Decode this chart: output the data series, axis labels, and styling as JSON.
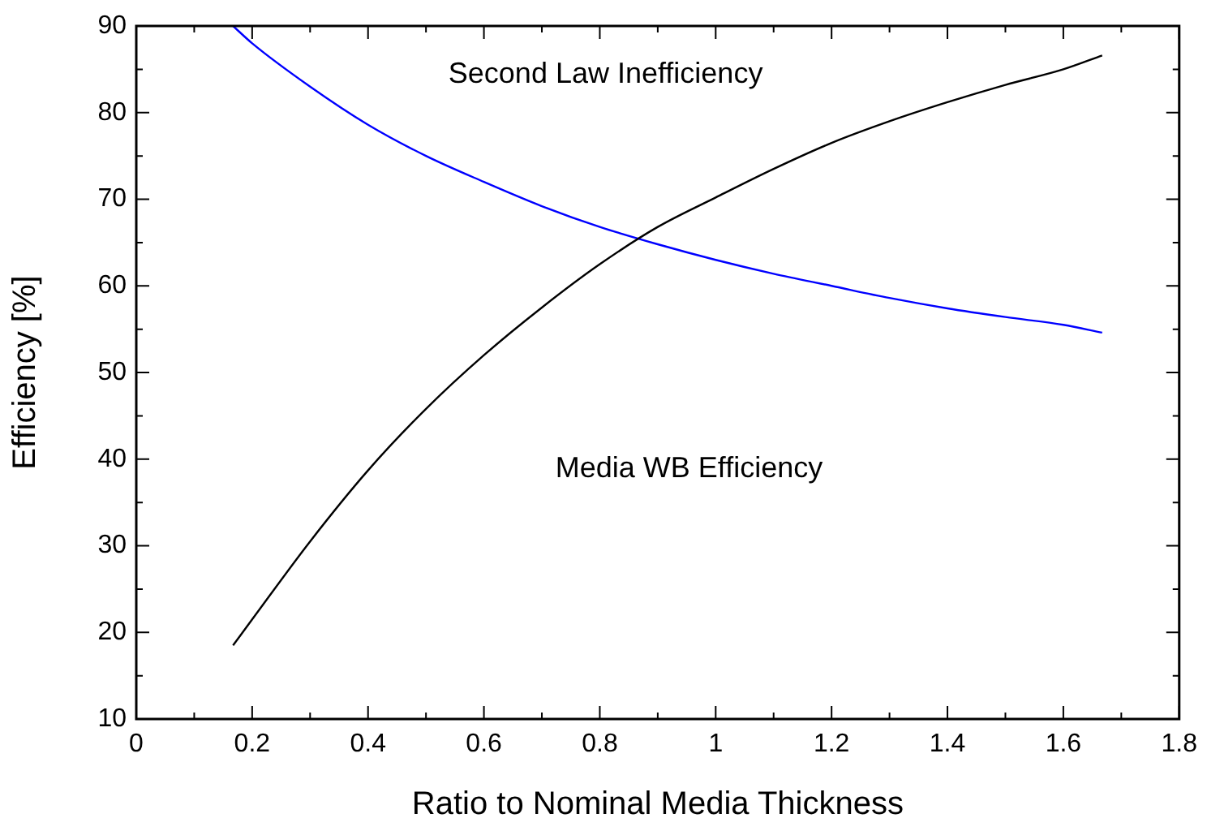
{
  "chart_data": {
    "type": "line",
    "xlabel": "Ratio to Nominal Media Thickness",
    "ylabel": "Efficiency [%]",
    "xlim": [
      0,
      1.8
    ],
    "ylim": [
      10,
      90
    ],
    "xticks": [
      0,
      {
        "value": 0.1,
        "label": null
      },
      0.2,
      {
        "value": 0.3,
        "label": null
      },
      0.4,
      {
        "value": 0.5,
        "label": null
      },
      0.6,
      {
        "value": 0.7,
        "label": null
      },
      0.8,
      {
        "value": 0.9,
        "label": null
      },
      1,
      {
        "value": 1.1,
        "label": null
      },
      1.2,
      {
        "value": 1.3,
        "label": null
      },
      1.4,
      {
        "value": 1.5,
        "label": null
      },
      1.6,
      {
        "value": 1.7,
        "label": null
      },
      1.8
    ],
    "yticks": [
      10,
      {
        "value": 15,
        "label": null
      },
      20,
      {
        "value": 25,
        "label": null
      },
      30,
      {
        "value": 35,
        "label": null
      },
      40,
      {
        "value": 45,
        "label": null
      },
      50,
      {
        "value": 55,
        "label": null
      },
      60,
      {
        "value": 65,
        "label": null
      },
      70,
      {
        "value": 75,
        "label": null
      },
      80,
      {
        "value": 85,
        "label": null
      },
      90
    ],
    "grid": false,
    "legend": false,
    "marker": "none",
    "line_style": "solid",
    "x": [
      0.167,
      0.2,
      0.3,
      0.4,
      0.5,
      0.6,
      0.7,
      0.8,
      0.9,
      1.0,
      1.1,
      1.2,
      1.3,
      1.4,
      1.5,
      1.6,
      1.667
    ],
    "series": [
      {
        "color": "#000000",
        "values": [
          18.5,
          21.5,
          30.5,
          38.7,
          45.8,
          52,
          57.5,
          62.5,
          66.8,
          70.2,
          73.5,
          76.5,
          79,
          81.2,
          83.2,
          85,
          86.6
        ]
      },
      {
        "color": "#0000ff",
        "values": [
          90,
          88,
          83,
          78.6,
          75,
          72,
          69.2,
          66.8,
          64.8,
          63,
          61.4,
          60,
          58.6,
          57.4,
          56.4,
          55.5,
          54.6
        ]
      }
    ],
    "annotations": [
      "Second Law Inefficiency",
      "Media WB Efficiency"
    ]
  }
}
